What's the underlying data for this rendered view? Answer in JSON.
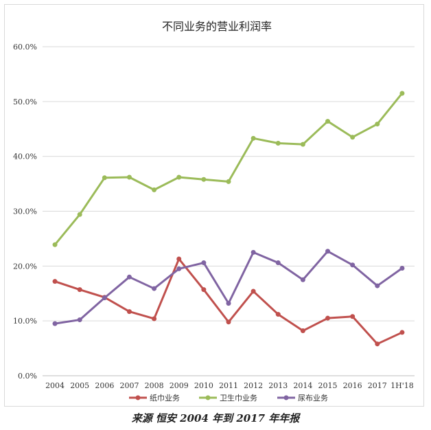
{
  "colors": {
    "paper_towel": "#c0504d",
    "sanitary_towel": "#9bbb59",
    "diaper": "#8064a2",
    "grid": "#d9d9d9",
    "text": "#333333"
  },
  "source_note": "来源 恒安 2004 年到 2017 年年报",
  "chart_data": {
    "type": "line",
    "title": "不同业务的营业利润率",
    "xlabel": "",
    "ylabel": "",
    "categories": [
      "2004",
      "2005",
      "2006",
      "2007",
      "2008",
      "2009",
      "2010",
      "2011",
      "2012",
      "2013",
      "2014",
      "2015",
      "2016",
      "2017",
      "1H'18"
    ],
    "y_ticks": [
      "0.0%",
      "10.0%",
      "20.0%",
      "30.0%",
      "40.0%",
      "50.0%",
      "60.0%"
    ],
    "ylim": [
      0,
      60
    ],
    "grid": true,
    "legend_position": "bottom",
    "series": [
      {
        "name": "纸巾业务",
        "color": "#c0504d",
        "values": [
          17.2,
          15.7,
          14.3,
          11.7,
          10.4,
          21.3,
          15.7,
          9.8,
          15.4,
          11.2,
          8.2,
          10.5,
          10.8,
          5.8,
          7.9
        ]
      },
      {
        "name": "卫生巾业务",
        "color": "#9bbb59",
        "values": [
          23.9,
          29.4,
          36.1,
          36.2,
          33.9,
          36.2,
          35.8,
          35.4,
          43.3,
          42.4,
          42.2,
          46.4,
          43.5,
          45.9,
          51.5
        ]
      },
      {
        "name": "尿布业务",
        "color": "#8064a2",
        "values": [
          9.5,
          10.2,
          14.2,
          18.0,
          15.9,
          19.5,
          20.6,
          13.2,
          22.5,
          20.6,
          17.5,
          22.7,
          20.2,
          16.4,
          19.6
        ]
      }
    ]
  }
}
